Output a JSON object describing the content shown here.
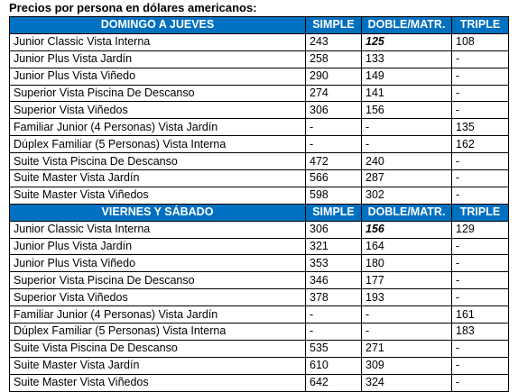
{
  "title": "Precios por persona en dólares americanos:",
  "sections": [
    {
      "header": [
        "DOMINGO A JUEVES",
        "SIMPLE",
        "DOBLE/MATR.",
        "TRIPLE"
      ],
      "rows": [
        [
          "Junior Classic Vista Interna",
          "243",
          "125",
          "108"
        ],
        [
          "Junior Plus Vista Jardín",
          "258",
          "133",
          "-"
        ],
        [
          "Junior Plus Vista Viñedo",
          "290",
          "149",
          "-"
        ],
        [
          "Superior Vista Piscina De Descanso",
          "274",
          "141",
          "-"
        ],
        [
          "Superior Vista Viñedos",
          "306",
          "156",
          "-"
        ],
        [
          "Familiar Junior (4 Personas) Vista Jardín",
          "-",
          "-",
          "135"
        ],
        [
          "Dúplex Familiar (5 Personas) Vista Interna",
          "-",
          "-",
          "162"
        ],
        [
          "Suite Vista Piscina De Descanso",
          "472",
          "240",
          "-"
        ],
        [
          "Suite Master Vista Jardín",
          "566",
          "287",
          "-"
        ],
        [
          "Suite Master Vista Viñedos",
          "598",
          "302",
          "-"
        ]
      ]
    },
    {
      "header": [
        "VIERNES Y SÁBADO",
        "SIMPLE",
        "DOBLE/MATR.",
        "TRIPLE"
      ],
      "rows": [
        [
          "Junior Classic Vista Interna",
          "306",
          "156",
          "129"
        ],
        [
          "Junior Plus Vista Jardín",
          "321",
          "164",
          "-"
        ],
        [
          "Junior Plus Vista Viñedo",
          "353",
          "180",
          "-"
        ],
        [
          "Superior Vista Piscina De Descanso",
          "346",
          "177",
          "-"
        ],
        [
          "Superior Vista Viñedos",
          "378",
          "193",
          "-"
        ],
        [
          "Familiar Junior (4 Personas) Vista Jardín",
          "-",
          "-",
          "161"
        ],
        [
          "Dúplex Familiar (5 Personas) Vista Interna",
          "-",
          "-",
          "183"
        ],
        [
          "Suite Vista Piscina De Descanso",
          "535",
          "271",
          "-"
        ],
        [
          "Suite Master Vista Jardín",
          "610",
          "309",
          "-"
        ],
        [
          "Suite Master Vista Viñedos",
          "642",
          "324",
          "-"
        ]
      ]
    }
  ]
}
